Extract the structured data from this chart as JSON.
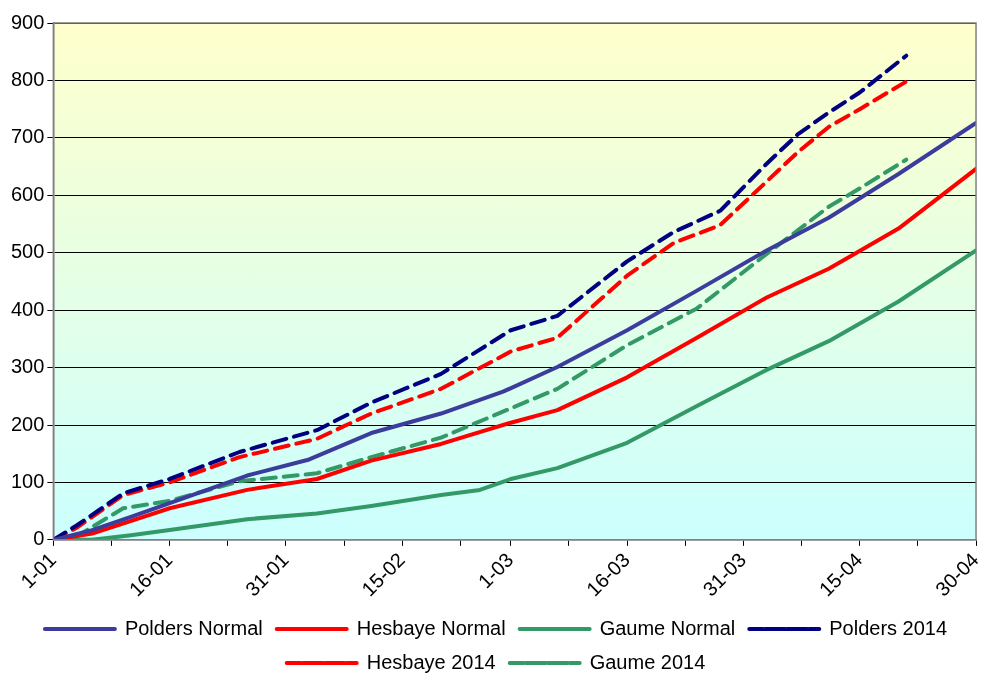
{
  "chart_data": {
    "type": "line",
    "xlim": [
      "--01-01",
      "--04-30"
    ],
    "ylim": [
      0,
      900
    ],
    "yticks": [
      0,
      100,
      200,
      300,
      400,
      500,
      600,
      700,
      800,
      900
    ],
    "xticks": [
      {
        "value": "--01-01",
        "label": "1-01"
      },
      {
        "value": "--01-08T12:00",
        "label": null
      },
      {
        "value": "--01-16",
        "label": "16-01"
      },
      {
        "value": "--01-23T12:00",
        "label": null
      },
      {
        "value": "--01-31",
        "label": "31-01"
      },
      {
        "value": "--02-07T12:00",
        "label": null
      },
      {
        "value": "--02-15",
        "label": "15-02"
      },
      {
        "value": "--02-22T12:00",
        "label": null
      },
      {
        "value": "--03-01",
        "label": "1-03"
      },
      {
        "value": "--03-08T12:00",
        "label": null
      },
      {
        "value": "--03-16",
        "label": "16-03"
      },
      {
        "value": "--03-23T12:00",
        "label": null
      },
      {
        "value": "--03-31",
        "label": "31-03"
      },
      {
        "value": "--04-07T12:00",
        "label": null
      },
      {
        "value": "--04-15",
        "label": "15-04"
      },
      {
        "value": "--04-22T12:00",
        "label": null
      },
      {
        "value": "--04-30",
        "label": "30-04"
      }
    ],
    "grid": "y",
    "legend": "bottom",
    "marker": "none",
    "series": [
      {
        "name": "Polders Normal",
        "color": "#3c3c9c",
        "line_style": "solid",
        "x": [
          "--01-01",
          "--01-06",
          "--01-11",
          "--01-16",
          "--01-26",
          "--02-03",
          "--02-11",
          "--02-20",
          "--02-28",
          "--03-07",
          "--03-16",
          "--03-25",
          "--04-03",
          "--04-11",
          "--04-20",
          "--04-30"
        ],
        "values": [
          0,
          17,
          40,
          64,
          112,
          140,
          186,
          220,
          258,
          301,
          365,
          434,
          504,
          561,
          637,
          726
        ]
      },
      {
        "name": "Hesbaye Normal",
        "color": "#ff0000",
        "line_style": "solid",
        "x": [
          "--01-01",
          "--01-06",
          "--01-16",
          "--01-26",
          "--02-04",
          "--02-11",
          "--02-20",
          "--03-01",
          "--03-07",
          "--03-16",
          "--03-25",
          "--04-03",
          "--04-11",
          "--04-20",
          "--04-30"
        ],
        "values": [
          0,
          11,
          55,
          87,
          106,
          138,
          167,
          204,
          226,
          283,
          352,
          422,
          472,
          542,
          646
        ]
      },
      {
        "name": "Gaume Normal",
        "color": "#339966",
        "line_style": "solid",
        "x": [
          "--01-01",
          "--01-06",
          "--01-11",
          "--01-16",
          "--01-26",
          "--02-04",
          "--02-11",
          "--02-20",
          "--02-25",
          "--03-01",
          "--03-07",
          "--03-16",
          "--03-25",
          "--04-03",
          "--04-11",
          "--04-20",
          "--04-30"
        ],
        "values": [
          0,
          0,
          8,
          17,
          36,
          46,
          59,
          78,
          87,
          106,
          125,
          169,
          233,
          296,
          346,
          415,
          504
        ]
      },
      {
        "name": "Polders 2014",
        "color": "#000080",
        "line_style": "dashed",
        "x": [
          "--01-01",
          "--01-04",
          "--01-10",
          "--01-16",
          "--01-25",
          "--02-04",
          "--02-11",
          "--02-20",
          "--03-01",
          "--03-07",
          "--03-16",
          "--03-22",
          "--03-28",
          "--04-03",
          "--04-07",
          "--04-11",
          "--04-15",
          "--04-21"
        ],
        "values": [
          0,
          25,
          81,
          106,
          153,
          191,
          239,
          289,
          365,
          390,
          485,
          536,
          573,
          655,
          706,
          744,
          779,
          843
        ]
      },
      {
        "name": "Hesbaye 2014",
        "color": "#ff0000",
        "line_style": "dashed",
        "x": [
          "--01-01",
          "--01-04",
          "--01-10",
          "--01-16",
          "--01-25",
          "--02-04",
          "--02-11",
          "--02-20",
          "--03-01",
          "--03-07",
          "--03-16",
          "--03-22",
          "--03-28",
          "--04-03",
          "--04-07",
          "--04-11",
          "--04-15",
          "--04-21"
        ],
        "values": [
          0,
          21,
          78,
          100,
          144,
          176,
          220,
          263,
          328,
          352,
          460,
          517,
          548,
          624,
          675,
          719,
          750,
          798
        ]
      },
      {
        "name": "Gaume 2014",
        "color": "#339966",
        "line_style": "dashed",
        "x": [
          "--01-01",
          "--01-04",
          "--01-10",
          "--01-16",
          "--01-25",
          "--02-04",
          "--02-11",
          "--02-20",
          "--03-01",
          "--03-07",
          "--03-16",
          "--03-25",
          "--04-03",
          "--04-11",
          "--04-15",
          "--04-21"
        ],
        "values": [
          0,
          6,
          55,
          68,
          102,
          116,
          144,
          178,
          229,
          263,
          339,
          403,
          498,
          580,
          612,
          662
        ]
      }
    ]
  }
}
